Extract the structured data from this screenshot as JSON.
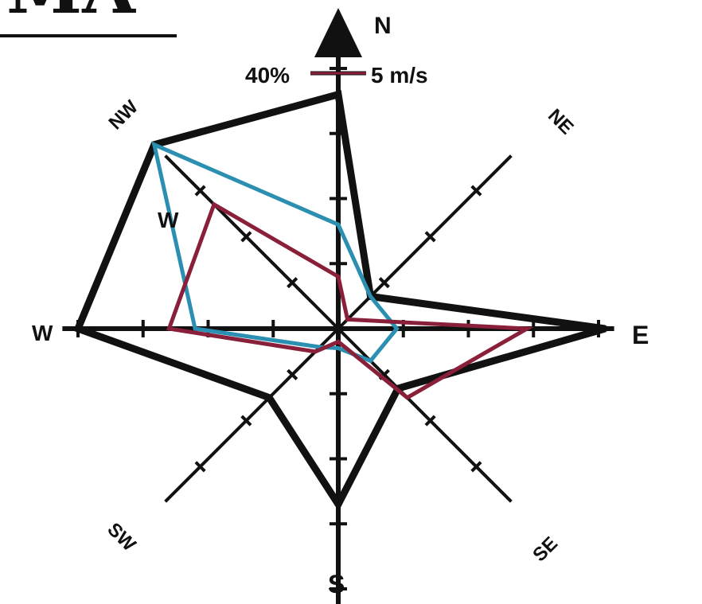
{
  "chart_data": {
    "type": "radar",
    "title_fragment": "MA",
    "axes": [
      "N",
      "NE",
      "E",
      "SE",
      "S",
      "SW",
      "W",
      "NW"
    ],
    "direction_labels": {
      "N": "N",
      "NE": "NE",
      "E": "E",
      "SE": "SE",
      "S": "S",
      "SW": "SW",
      "W": "W",
      "NW": "NW"
    },
    "scale_legend": {
      "frequency": "40%",
      "speed": "5 m/s"
    },
    "tick_step_percent": 10,
    "axis_max_percent": 40,
    "series": [
      {
        "color": "#111111",
        "values": [
          36,
          7,
          41,
          13,
          27,
          15,
          40,
          40
        ]
      },
      {
        "color": "#2a8fb0",
        "values": [
          16,
          7,
          9,
          7,
          3,
          4,
          22,
          40
        ]
      },
      {
        "color": "#8a1f3a",
        "values": [
          8,
          2,
          29,
          15,
          2,
          5,
          26,
          27
        ]
      }
    ],
    "inner_label": "W",
    "colors": {
      "axes": "#111111",
      "background": "#ffffff"
    }
  }
}
